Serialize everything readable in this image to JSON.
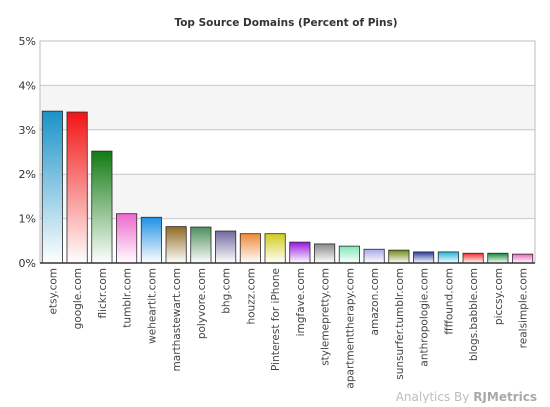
{
  "chart_data": {
    "type": "bar",
    "title": "Top Source Domains (Percent of Pins)",
    "xlabel": "",
    "ylabel": "",
    "ylim": [
      0,
      5
    ],
    "yticks": [
      "0%",
      "1%",
      "2%",
      "3%",
      "4%",
      "5%"
    ],
    "grid": true,
    "legend": "none",
    "categories": [
      "etsy.com",
      "google.com",
      "flickr.com",
      "tumblr.com",
      "weheartit.com",
      "marthastewart.com",
      "polyvore.com",
      "bhg.com",
      "houzz.com",
      "Pinterest for iPhone",
      "imgfave.com",
      "stylemepretty.com",
      "apartmenttherapy.com",
      "amazon.com",
      "sunsurfer.tumblr.com",
      "anthropologie.com",
      "ffffound.com",
      "blogs.babble.com",
      "piccsy.com",
      "realsimple.com"
    ],
    "values": [
      3.42,
      3.4,
      2.52,
      1.11,
      1.03,
      0.82,
      0.81,
      0.72,
      0.66,
      0.66,
      0.47,
      0.43,
      0.38,
      0.31,
      0.29,
      0.25,
      0.25,
      0.22,
      0.22,
      0.2
    ],
    "colors": [
      "#1b92c8",
      "#f21414",
      "#137a13",
      "#ee68ce",
      "#1e90e6",
      "#8e6a22",
      "#4e8e5c",
      "#6f6aa0",
      "#ee8a3a",
      "#d0cc1c",
      "#9a16e0",
      "#8a8a8a",
      "#7ce8b4",
      "#a8a8e8",
      "#6f8a12",
      "#2a3a9e",
      "#20b4dc",
      "#ee2a2a",
      "#118a3a",
      "#ee68c0"
    ]
  },
  "footer": {
    "brand_prefix": "Analytics By ",
    "brand_name": "RJMetrics"
  }
}
